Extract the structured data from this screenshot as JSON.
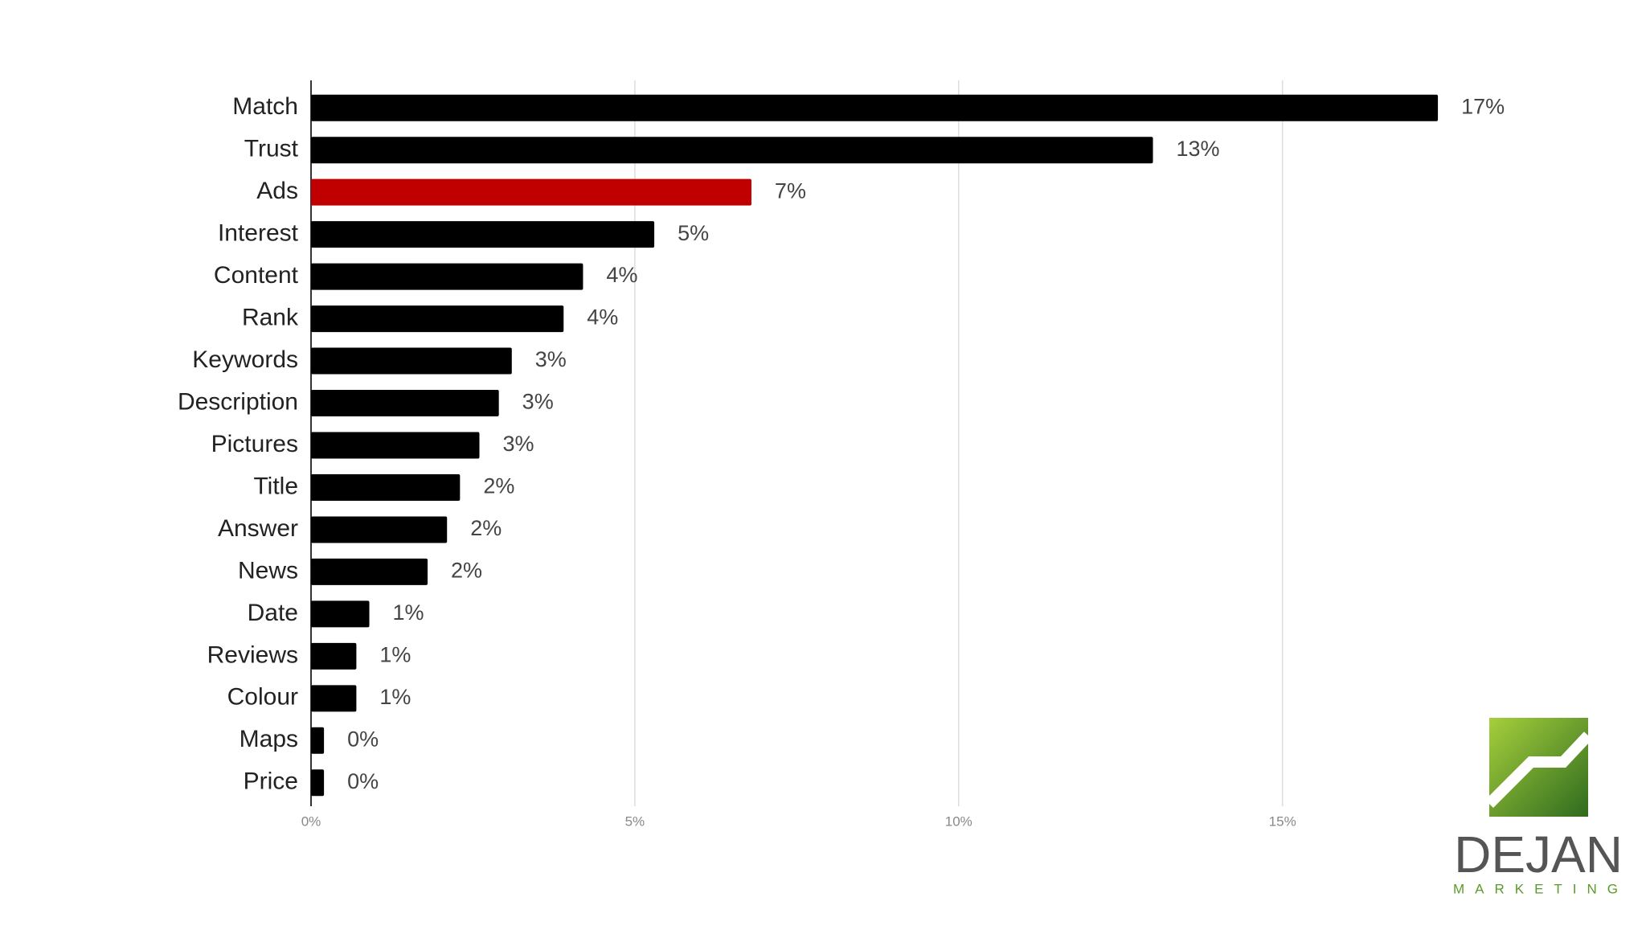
{
  "chart_data": {
    "type": "barh",
    "categories": [
      "Match",
      "Trust",
      "Ads",
      "Interest",
      "Content",
      "Rank",
      "Keywords",
      "Description",
      "Pictures",
      "Title",
      "Answer",
      "News",
      "Date",
      "Reviews",
      "Colour",
      "Maps",
      "Price"
    ],
    "values": [
      17.4,
      13.0,
      6.8,
      5.3,
      4.2,
      3.9,
      3.1,
      2.9,
      2.6,
      2.3,
      2.1,
      1.8,
      0.9,
      0.7,
      0.7,
      0.2,
      0.2
    ],
    "value_labels": [
      "17%",
      "13%",
      "7%",
      "5%",
      "4%",
      "4%",
      "3%",
      "3%",
      "3%",
      "2%",
      "2%",
      "2%",
      "1%",
      "1%",
      "1%",
      "0%",
      "0%"
    ],
    "colors": [
      "#000000",
      "#000000",
      "#c00000",
      "#000000",
      "#000000",
      "#000000",
      "#000000",
      "#000000",
      "#000000",
      "#000000",
      "#000000",
      "#000000",
      "#000000",
      "#000000",
      "#000000",
      "#000000",
      "#000000"
    ],
    "xlim": [
      0,
      19
    ],
    "xticks": [
      {
        "value": 0,
        "label": "0%"
      },
      {
        "value": 5,
        "label": "5%"
      },
      {
        "value": 10,
        "label": "10%"
      },
      {
        "value": 15,
        "label": "15%"
      }
    ],
    "grid": true
  },
  "logo": {
    "name": "DEJAN",
    "tagline": "MARKETING"
  }
}
